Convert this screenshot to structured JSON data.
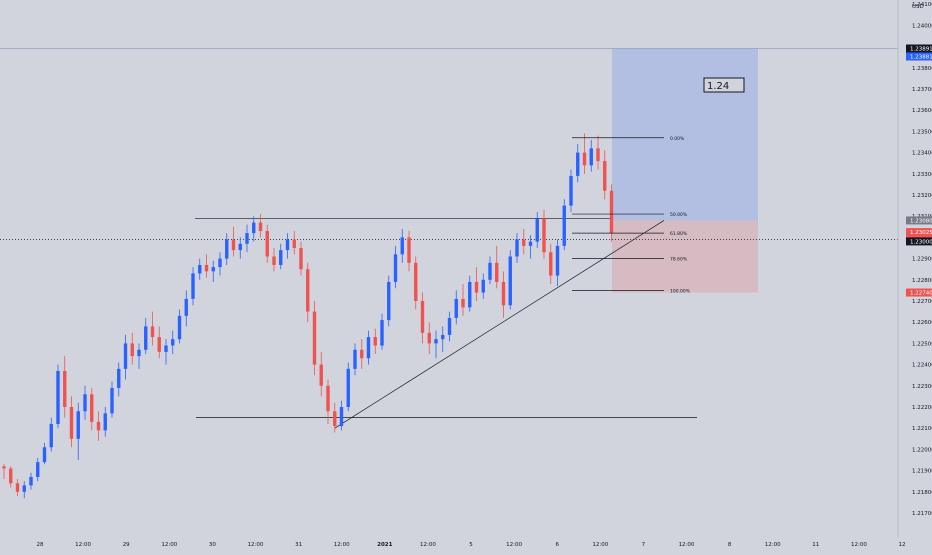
{
  "chart_data": {
    "type": "candlestick",
    "currency": "USD",
    "price_axis_ticks": [
      "1.24300",
      "1.24200",
      "1.24100",
      "1.24000",
      "1.23900",
      "1.23800",
      "1.23700",
      "1.23600",
      "1.23500",
      "1.23400",
      "1.23300",
      "1.23200",
      "1.23100",
      "1.23000",
      "1.22900",
      "1.22800",
      "1.22700",
      "1.22600",
      "1.22500",
      "1.22400",
      "1.22300",
      "1.22200",
      "1.22100",
      "1.22000",
      "1.21900",
      "1.21800",
      "1.21700"
    ],
    "time_axis_labels": [
      "28",
      "12:00",
      "29",
      "12:00",
      "30",
      "12:00",
      "31",
      "12:00",
      "2021",
      "12:00",
      "5",
      "12:00",
      "6",
      "12:00",
      "7",
      "12:00",
      "8",
      "12:00",
      "11",
      "12:00",
      "12"
    ],
    "price_badges": {
      "target": "1.23891",
      "target_secondary": "1.23881",
      "entry": "1.23080",
      "current": "1.23025",
      "countdown": "39:20",
      "crosshair": "1.23000",
      "stop": "1.22740"
    },
    "annotation_text": "1.24",
    "fibonacci_levels": [
      {
        "label": "0.00%",
        "price": 1.2347
      },
      {
        "label": "50.00%",
        "price": 1.2311
      },
      {
        "label": "61.80%",
        "price": 1.2302
      },
      {
        "label": "78.60%",
        "price": 1.229
      },
      {
        "label": "100.00%",
        "price": 1.2275
      }
    ],
    "position_tool": {
      "entry": 1.2308,
      "target": 1.23891,
      "stop": 1.2274
    },
    "horizontal_levels": [
      1.2309,
      1.2215
    ],
    "trendline": {
      "from": 1.221,
      "to": 1.2308
    },
    "candles": [
      [
        1.2192,
        1.2193,
        1.2186,
        1.2191
      ],
      [
        1.2191,
        1.2192,
        1.2182,
        1.2184
      ],
      [
        1.2184,
        1.2186,
        1.2178,
        1.218
      ],
      [
        1.218,
        1.2185,
        1.2177,
        1.2183
      ],
      [
        1.2183,
        1.2189,
        1.2181,
        1.2187
      ],
      [
        1.2187,
        1.2196,
        1.2185,
        1.2194
      ],
      [
        1.2194,
        1.2203,
        1.2193,
        1.2201
      ],
      [
        1.2201,
        1.2215,
        1.2199,
        1.2212
      ],
      [
        1.2212,
        1.224,
        1.221,
        1.2237
      ],
      [
        1.2237,
        1.2244,
        1.2215,
        1.222
      ],
      [
        1.222,
        1.2225,
        1.2201,
        1.2205
      ],
      [
        1.2205,
        1.2222,
        1.2195,
        1.2218
      ],
      [
        1.2218,
        1.223,
        1.2214,
        1.2226
      ],
      [
        1.2226,
        1.2229,
        1.2209,
        1.2213
      ],
      [
        1.2213,
        1.2218,
        1.2204,
        1.2209
      ],
      [
        1.2209,
        1.222,
        1.2206,
        1.2217
      ],
      [
        1.2217,
        1.2232,
        1.2215,
        1.2229
      ],
      [
        1.2229,
        1.2241,
        1.2225,
        1.2238
      ],
      [
        1.2238,
        1.2254,
        1.2233,
        1.225
      ],
      [
        1.225,
        1.2255,
        1.224,
        1.2244
      ],
      [
        1.2244,
        1.225,
        1.2238,
        1.2247
      ],
      [
        1.2247,
        1.2262,
        1.2245,
        1.2258
      ],
      [
        1.2258,
        1.2265,
        1.2249,
        1.2253
      ],
      [
        1.2253,
        1.2258,
        1.2243,
        1.2246
      ],
      [
        1.2246,
        1.2252,
        1.224,
        1.2249
      ],
      [
        1.2249,
        1.2256,
        1.2245,
        1.2252
      ],
      [
        1.2252,
        1.2266,
        1.225,
        1.2263
      ],
      [
        1.2263,
        1.2275,
        1.2258,
        1.2271
      ],
      [
        1.2271,
        1.2286,
        1.2268,
        1.2283
      ],
      [
        1.2283,
        1.229,
        1.228,
        1.2287
      ],
      [
        1.2287,
        1.2292,
        1.2281,
        1.2284
      ],
      [
        1.2284,
        1.2289,
        1.2279,
        1.2286
      ],
      [
        1.2286,
        1.2293,
        1.2282,
        1.229
      ],
      [
        1.229,
        1.2302,
        1.2287,
        1.2299
      ],
      [
        1.2299,
        1.2305,
        1.2291,
        1.2294
      ],
      [
        1.2294,
        1.23,
        1.229,
        1.2297
      ],
      [
        1.2297,
        1.2306,
        1.2293,
        1.2302
      ],
      [
        1.2302,
        1.231,
        1.2298,
        1.2307
      ],
      [
        1.2307,
        1.2311,
        1.23,
        1.2303
      ],
      [
        1.2303,
        1.2306,
        1.2288,
        1.2291
      ],
      [
        1.2291,
        1.2295,
        1.2284,
        1.2287
      ],
      [
        1.2287,
        1.2297,
        1.2285,
        1.2294
      ],
      [
        1.2294,
        1.2302,
        1.229,
        1.2299
      ],
      [
        1.2299,
        1.2303,
        1.2292,
        1.2295
      ],
      [
        1.2295,
        1.2298,
        1.2282,
        1.2285
      ],
      [
        1.2285,
        1.2288,
        1.226,
        1.2265
      ],
      [
        1.2265,
        1.227,
        1.2235,
        1.224
      ],
      [
        1.224,
        1.2246,
        1.2225,
        1.223
      ],
      [
        1.223,
        1.2233,
        1.2212,
        1.2218
      ],
      [
        1.2218,
        1.2222,
        1.2208,
        1.2211
      ],
      [
        1.2211,
        1.2223,
        1.2209,
        1.222
      ],
      [
        1.222,
        1.2241,
        1.2218,
        1.2238
      ],
      [
        1.2238,
        1.225,
        1.2235,
        1.2247
      ],
      [
        1.2247,
        1.2252,
        1.2238,
        1.2243
      ],
      [
        1.2243,
        1.2256,
        1.224,
        1.2253
      ],
      [
        1.2253,
        1.2257,
        1.2245,
        1.2249
      ],
      [
        1.2249,
        1.2264,
        1.2247,
        1.2261
      ],
      [
        1.2261,
        1.2282,
        1.2258,
        1.2279
      ],
      [
        1.2279,
        1.2296,
        1.2276,
        1.2292
      ],
      [
        1.2292,
        1.2304,
        1.2288,
        1.23
      ],
      [
        1.23,
        1.2303,
        1.2284,
        1.2288
      ],
      [
        1.2288,
        1.2291,
        1.2266,
        1.227
      ],
      [
        1.227,
        1.2274,
        1.225,
        1.2255
      ],
      [
        1.2255,
        1.226,
        1.2245,
        1.225
      ],
      [
        1.225,
        1.2256,
        1.2243,
        1.2252
      ],
      [
        1.2252,
        1.2258,
        1.2246,
        1.2254
      ],
      [
        1.2254,
        1.2265,
        1.2251,
        1.2262
      ],
      [
        1.2262,
        1.2275,
        1.2259,
        1.2271
      ],
      [
        1.2271,
        1.2278,
        1.2263,
        1.2267
      ],
      [
        1.2267,
        1.2282,
        1.2265,
        1.2279
      ],
      [
        1.2279,
        1.2286,
        1.227,
        1.2274
      ],
      [
        1.2274,
        1.2283,
        1.2271,
        1.228
      ],
      [
        1.228,
        1.2291,
        1.2278,
        1.2288
      ],
      [
        1.2288,
        1.2296,
        1.2276,
        1.2279
      ],
      [
        1.2279,
        1.2284,
        1.2262,
        1.2268
      ],
      [
        1.2268,
        1.2294,
        1.2266,
        1.2291
      ],
      [
        1.2291,
        1.2302,
        1.2288,
        1.2299
      ],
      [
        1.2299,
        1.2304,
        1.2292,
        1.2296
      ],
      [
        1.2296,
        1.2301,
        1.229,
        1.2298
      ],
      [
        1.2298,
        1.2312,
        1.2295,
        1.2309
      ],
      [
        1.2309,
        1.2313,
        1.229,
        1.2293
      ],
      [
        1.2293,
        1.2297,
        1.2278,
        1.2282
      ],
      [
        1.2282,
        1.2299,
        1.2277,
        1.2296
      ],
      [
        1.2296,
        1.2318,
        1.2294,
        1.2315
      ],
      [
        1.2315,
        1.2332,
        1.2312,
        1.2329
      ],
      [
        1.2329,
        1.2344,
        1.2326,
        1.234
      ],
      [
        1.234,
        1.2349,
        1.233,
        1.2334
      ],
      [
        1.2334,
        1.2346,
        1.2331,
        1.2342
      ],
      [
        1.2342,
        1.2348,
        1.2332,
        1.2336
      ],
      [
        1.2336,
        1.2341,
        1.2318,
        1.2322
      ],
      [
        1.2322,
        1.2325,
        1.2298,
        1.2302
      ]
    ]
  }
}
